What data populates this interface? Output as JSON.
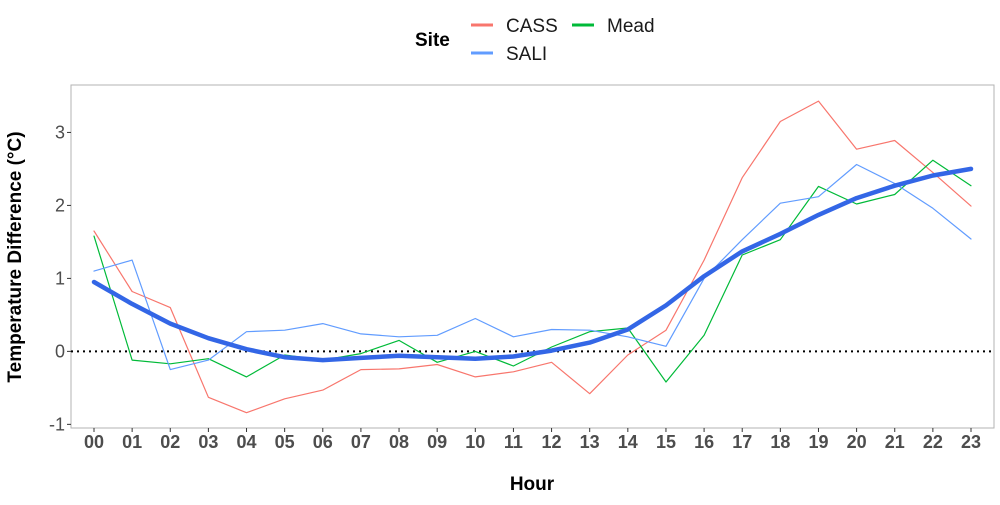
{
  "chart_data": {
    "type": "line",
    "xlabel": "Hour",
    "ylabel": "Temperature Difference (°C)",
    "x": [
      "00",
      "01",
      "02",
      "03",
      "04",
      "05",
      "06",
      "07",
      "08",
      "09",
      "10",
      "11",
      "12",
      "13",
      "14",
      "15",
      "16",
      "17",
      "18",
      "19",
      "20",
      "21",
      "22",
      "23"
    ],
    "ylim": [
      -1.05,
      3.65
    ],
    "yticks": [
      -1,
      0,
      1,
      2,
      3
    ],
    "ytick_labels": [
      "-1",
      "0",
      "1",
      "2",
      "3"
    ],
    "reference_line": {
      "y": 0,
      "style": "dotted",
      "color": "#000000"
    },
    "grid": false,
    "legend": {
      "title": "Site",
      "position": "top"
    },
    "series": [
      {
        "name": "CASS",
        "color": "#f8766d",
        "values": [
          1.65,
          0.82,
          0.6,
          -0.63,
          -0.84,
          -0.65,
          -0.53,
          -0.25,
          -0.24,
          -0.18,
          -0.35,
          -0.28,
          -0.15,
          -0.58,
          -0.05,
          0.29,
          1.25,
          2.38,
          3.15,
          3.43,
          2.77,
          2.89,
          2.45,
          1.99
        ]
      },
      {
        "name": "Mead",
        "color": "#00ba38",
        "values": [
          1.58,
          -0.12,
          -0.17,
          -0.1,
          -0.35,
          -0.05,
          -0.12,
          -0.03,
          0.15,
          -0.15,
          0.0,
          -0.2,
          0.06,
          0.27,
          0.32,
          -0.42,
          0.22,
          1.32,
          1.53,
          2.26,
          2.02,
          2.15,
          2.62,
          2.27
        ]
      },
      {
        "name": "SALI",
        "color": "#619cff",
        "values": [
          1.1,
          1.25,
          -0.25,
          -0.12,
          0.27,
          0.29,
          0.38,
          0.24,
          0.2,
          0.22,
          0.45,
          0.2,
          0.3,
          0.29,
          0.2,
          0.07,
          1.0,
          1.53,
          2.03,
          2.12,
          2.56,
          2.3,
          1.96,
          1.54
        ]
      },
      {
        "name": "",
        "color": "#3366e6",
        "role": "smoothed trend",
        "values": [
          0.95,
          0.65,
          0.38,
          0.18,
          0.03,
          -0.08,
          -0.12,
          -0.09,
          -0.06,
          -0.08,
          -0.1,
          -0.07,
          0.01,
          0.12,
          0.3,
          0.63,
          1.03,
          1.37,
          1.61,
          1.87,
          2.1,
          2.27,
          2.41,
          2.5
        ]
      }
    ]
  }
}
